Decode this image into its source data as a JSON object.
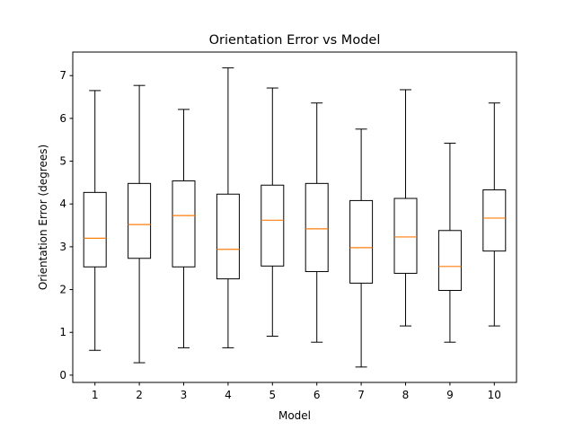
{
  "chart_data": {
    "type": "boxplot",
    "title": "Orientation Error vs Model",
    "xlabel": "Model",
    "ylabel": "Orientation Error (degrees)",
    "categories": [
      "1",
      "2",
      "3",
      "4",
      "5",
      "6",
      "7",
      "8",
      "9",
      "10"
    ],
    "ylim": [
      -0.17,
      7.55
    ],
    "yticks": [
      0,
      1,
      2,
      3,
      4,
      5,
      6,
      7
    ],
    "grid": false,
    "boxes": [
      {
        "label": "1",
        "whisker_low": 0.58,
        "q1": 2.53,
        "median": 3.2,
        "q3": 4.27,
        "whisker_high": 6.65
      },
      {
        "label": "2",
        "whisker_low": 0.29,
        "q1": 2.73,
        "median": 3.52,
        "q3": 4.48,
        "whisker_high": 6.77
      },
      {
        "label": "3",
        "whisker_low": 0.64,
        "q1": 2.53,
        "median": 3.73,
        "q3": 4.54,
        "whisker_high": 6.21
      },
      {
        "label": "4",
        "whisker_low": 0.64,
        "q1": 2.25,
        "median": 2.94,
        "q3": 4.23,
        "whisker_high": 7.18
      },
      {
        "label": "5",
        "whisker_low": 0.91,
        "q1": 2.55,
        "median": 3.62,
        "q3": 4.44,
        "whisker_high": 6.71
      },
      {
        "label": "6",
        "whisker_low": 0.77,
        "q1": 2.42,
        "median": 3.42,
        "q3": 4.48,
        "whisker_high": 6.36
      },
      {
        "label": "7",
        "whisker_low": 0.19,
        "q1": 2.15,
        "median": 2.98,
        "q3": 4.08,
        "whisker_high": 5.75
      },
      {
        "label": "8",
        "whisker_low": 1.15,
        "q1": 2.38,
        "median": 3.23,
        "q3": 4.13,
        "whisker_high": 6.67
      },
      {
        "label": "9",
        "whisker_low": 0.77,
        "q1": 1.98,
        "median": 2.54,
        "q3": 3.38,
        "whisker_high": 5.42
      },
      {
        "label": "10",
        "whisker_low": 1.15,
        "q1": 2.9,
        "median": 3.67,
        "q3": 4.33,
        "whisker_high": 6.36
      }
    ],
    "colors": {
      "box": "#000000",
      "median": "#ff7f0e",
      "whisker": "#000000"
    }
  }
}
